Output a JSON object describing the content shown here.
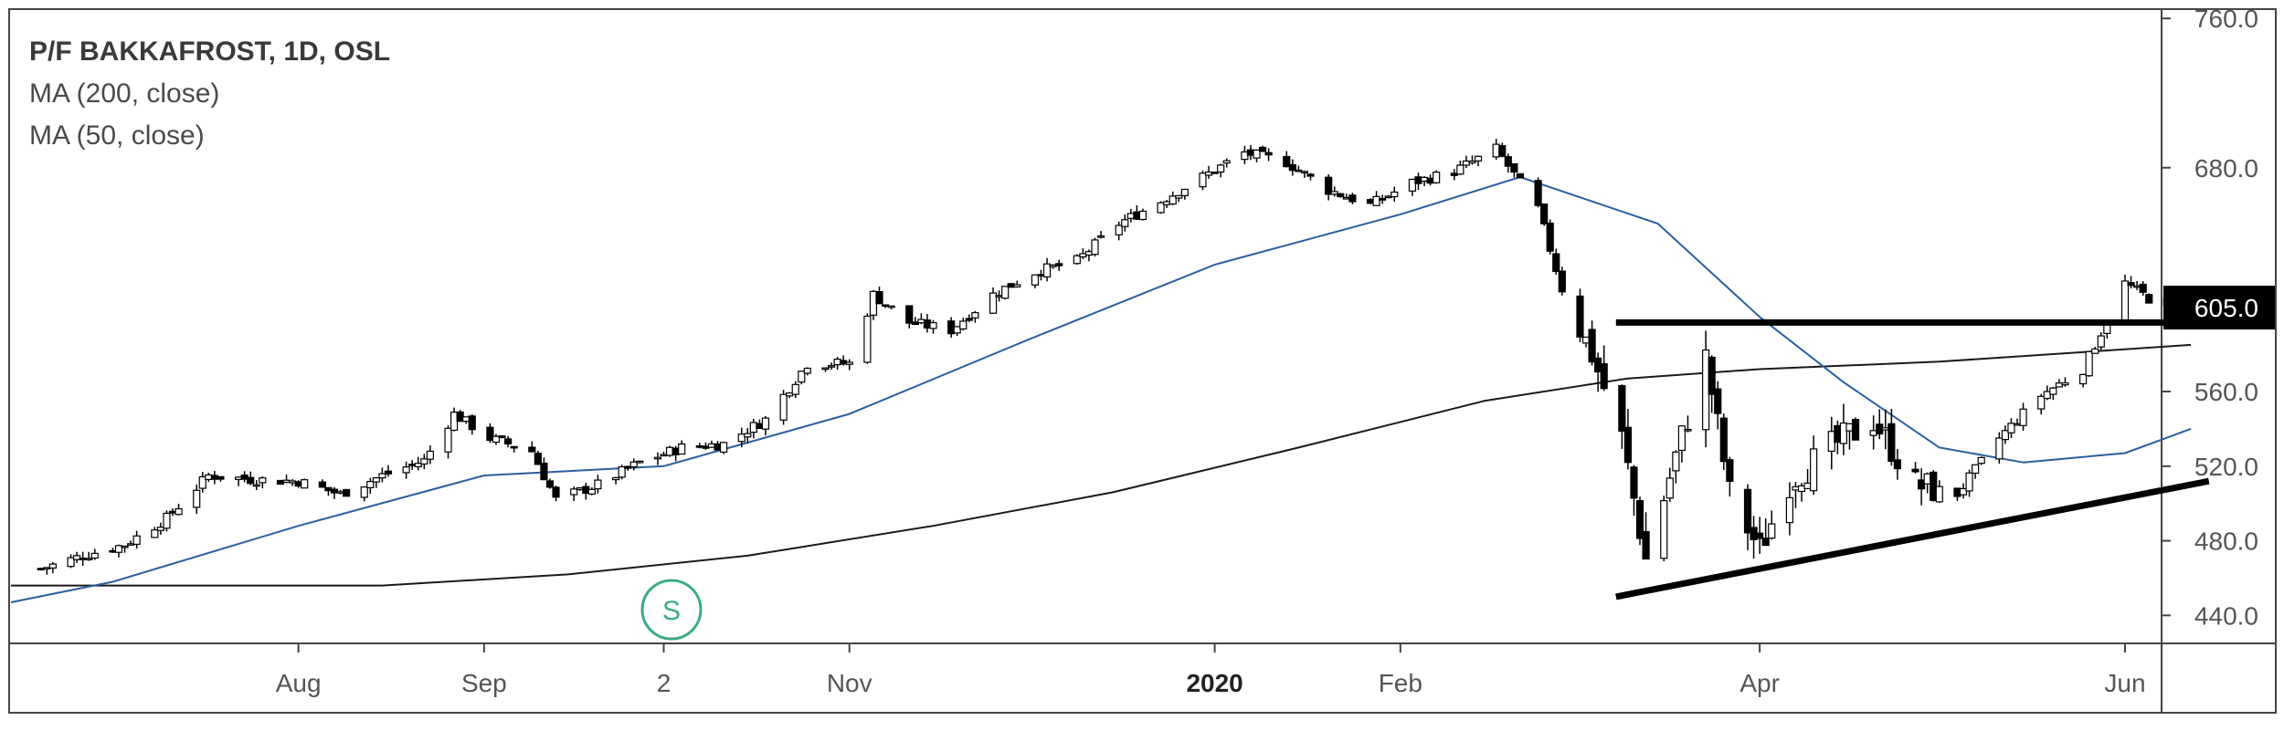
{
  "legend": {
    "title": "P/F BAKKAFROST, 1D, OSL",
    "ma1": "MA (200, close)",
    "ma2": "MA (50, close)"
  },
  "colors": {
    "up": "#ffffff",
    "down": "#000000",
    "ma50": "#2a5f9e",
    "ma200": "#1a1a1a",
    "price_label_bg": "#000000",
    "price_label_text": "#ffffff",
    "signal": "#3aaa85"
  },
  "signal_marker": {
    "label": "S",
    "date": "2019-10-10"
  },
  "chart_data": {
    "type": "candlestick",
    "title": "P/F BAKKAFROST, 1D, OSL",
    "ylim": [
      425,
      765
    ],
    "y_ticks": [
      "760.0",
      "680.0",
      "560.0",
      "520.0",
      "480.0",
      "440.0"
    ],
    "last_price": "605.0",
    "x_ticks": [
      {
        "label": "Aug",
        "date": "2019-08-01",
        "bold": false
      },
      {
        "label": "Sep",
        "date": "2019-09-01",
        "bold": false
      },
      {
        "label": "2",
        "date": "2019-10-01",
        "bold": false
      },
      {
        "label": "Nov",
        "date": "2019-11-01",
        "bold": false
      },
      {
        "label": "2020",
        "date": "2020-01-01",
        "bold": true
      },
      {
        "label": "Feb",
        "date": "2020-02-01",
        "bold": false
      },
      {
        "label": "Apr",
        "date": "2020-04-01",
        "bold": false
      },
      {
        "label": "Jun",
        "date": "2020-06-01",
        "bold": false
      }
    ],
    "close_points": [
      [
        "2019-06-19",
        465
      ],
      [
        "2019-06-26",
        472
      ],
      [
        "2019-07-03",
        478
      ],
      [
        "2019-07-10",
        492
      ],
      [
        "2019-07-17",
        515
      ],
      [
        "2019-07-24",
        513
      ],
      [
        "2019-08-01",
        512
      ],
      [
        "2019-08-08",
        505
      ],
      [
        "2019-08-15",
        515
      ],
      [
        "2019-08-22",
        523
      ],
      [
        "2019-08-27",
        548
      ],
      [
        "2019-09-02",
        535
      ],
      [
        "2019-09-09",
        528
      ],
      [
        "2019-09-13",
        502
      ],
      [
        "2019-09-20",
        510
      ],
      [
        "2019-09-27",
        522
      ],
      [
        "2019-10-04",
        530
      ],
      [
        "2019-10-11",
        532
      ],
      [
        "2019-10-18",
        545
      ],
      [
        "2019-10-25",
        575
      ],
      [
        "2019-11-01",
        575
      ],
      [
        "2019-11-05",
        612
      ],
      [
        "2019-11-11",
        597
      ],
      [
        "2019-11-18",
        593
      ],
      [
        "2019-11-25",
        612
      ],
      [
        "2019-12-02",
        624
      ],
      [
        "2019-12-09",
        630
      ],
      [
        "2019-12-16",
        650
      ],
      [
        "2019-12-23",
        662
      ],
      [
        "2019-12-30",
        675
      ],
      [
        "2020-01-06",
        688
      ],
      [
        "2020-01-13",
        683
      ],
      [
        "2020-01-20",
        668
      ],
      [
        "2020-01-27",
        660
      ],
      [
        "2020-02-03",
        672
      ],
      [
        "2020-02-10",
        678
      ],
      [
        "2020-02-17",
        690
      ],
      [
        "2020-02-24",
        658
      ],
      [
        "2020-02-28",
        615
      ],
      [
        "2020-03-04",
        580
      ],
      [
        "2020-03-09",
        535
      ],
      [
        "2020-03-13",
        470
      ],
      [
        "2020-03-18",
        525
      ],
      [
        "2020-03-23",
        578
      ],
      [
        "2020-03-27",
        505
      ],
      [
        "2020-04-01",
        475
      ],
      [
        "2020-04-06",
        512
      ],
      [
        "2020-04-13",
        530
      ],
      [
        "2020-04-20",
        545
      ],
      [
        "2020-04-27",
        510
      ],
      [
        "2020-05-04",
        505
      ],
      [
        "2020-05-11",
        535
      ],
      [
        "2020-05-18",
        558
      ],
      [
        "2020-05-25",
        572
      ],
      [
        "2020-06-01",
        618
      ],
      [
        "2020-06-05",
        610
      ],
      [
        "2020-06-12",
        605
      ]
    ],
    "ma50_points": [
      [
        "2019-06-14",
        447
      ],
      [
        "2019-07-01",
        458
      ],
      [
        "2019-08-01",
        488
      ],
      [
        "2019-09-01",
        515
      ],
      [
        "2019-10-01",
        520
      ],
      [
        "2019-11-01",
        548
      ],
      [
        "2019-12-01",
        588
      ],
      [
        "2020-01-01",
        628
      ],
      [
        "2020-02-01",
        655
      ],
      [
        "2020-02-21",
        675
      ],
      [
        "2020-03-15",
        650
      ],
      [
        "2020-04-01",
        600
      ],
      [
        "2020-04-15",
        565
      ],
      [
        "2020-05-01",
        530
      ],
      [
        "2020-05-15",
        522
      ],
      [
        "2020-06-01",
        527
      ],
      [
        "2020-06-12",
        540
      ]
    ],
    "ma200_points": [
      [
        "2019-06-14",
        456
      ],
      [
        "2019-08-15",
        456
      ],
      [
        "2019-09-15",
        462
      ],
      [
        "2019-10-15",
        472
      ],
      [
        "2019-11-15",
        488
      ],
      [
        "2019-12-15",
        506
      ],
      [
        "2020-01-15",
        530
      ],
      [
        "2020-02-15",
        555
      ],
      [
        "2020-03-10",
        567
      ],
      [
        "2020-04-01",
        572
      ],
      [
        "2020-05-01",
        576
      ],
      [
        "2020-06-12",
        585
      ]
    ],
    "annotations": {
      "resistance": {
        "from": [
          "2020-03-08",
          597
        ],
        "to": [
          "2020-06-15",
          597
        ]
      },
      "support": {
        "from": [
          "2020-03-08",
          450
        ],
        "to": [
          "2020-06-15",
          512
        ]
      }
    }
  }
}
